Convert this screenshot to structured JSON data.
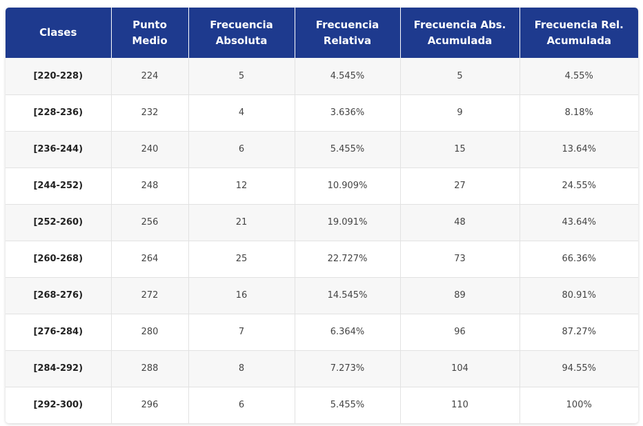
{
  "colors": {
    "header_bg": "#1e3a8e",
    "header_text": "#ffffff",
    "row_odd": "#f7f7f7",
    "row_even": "#ffffff"
  },
  "table": {
    "headers": [
      "Clases",
      "Punto Medio",
      "Frecuencia Absoluta",
      "Frecuencia Relativa",
      "Frecuencia Abs. Acumulada",
      "Frecuencia Rel. Acumulada"
    ],
    "rows": [
      [
        "[220-228)",
        "224",
        "5",
        "4.545%",
        "5",
        "4.55%"
      ],
      [
        "[228-236)",
        "232",
        "4",
        "3.636%",
        "9",
        "8.18%"
      ],
      [
        "[236-244)",
        "240",
        "6",
        "5.455%",
        "15",
        "13.64%"
      ],
      [
        "[244-252)",
        "248",
        "12",
        "10.909%",
        "27",
        "24.55%"
      ],
      [
        "[252-260)",
        "256",
        "21",
        "19.091%",
        "48",
        "43.64%"
      ],
      [
        "[260-268)",
        "264",
        "25",
        "22.727%",
        "73",
        "66.36%"
      ],
      [
        "[268-276)",
        "272",
        "16",
        "14.545%",
        "89",
        "80.91%"
      ],
      [
        "[276-284)",
        "280",
        "7",
        "6.364%",
        "96",
        "87.27%"
      ],
      [
        "[284-292)",
        "288",
        "8",
        "7.273%",
        "104",
        "94.55%"
      ],
      [
        "[292-300)",
        "296",
        "6",
        "5.455%",
        "110",
        "100%"
      ]
    ]
  }
}
